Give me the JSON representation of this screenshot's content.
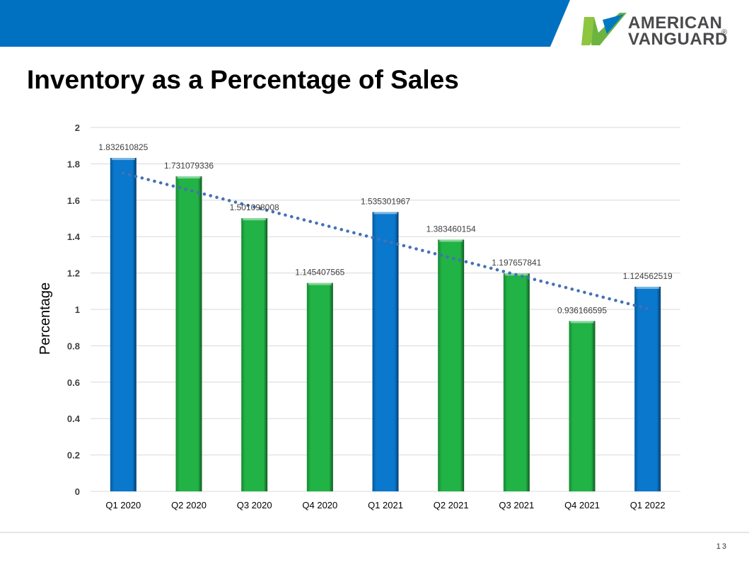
{
  "slide": {
    "title": "Inventory as a Percentage of Sales",
    "page_number": "13"
  },
  "logo": {
    "line1": "AMERICAN",
    "line2": "VANGUARD",
    "registered": "®"
  },
  "colors": {
    "header_blue": "#0070c0",
    "bar_blue": "#0a78cc",
    "bar_green": "#21b345",
    "trendline": "#4470b8",
    "logo_green": "#8dc63f",
    "logo_blue": "#0079c1"
  },
  "chart_data": {
    "type": "bar",
    "title": "",
    "xlabel": "",
    "ylabel": "Percentage",
    "ylim": [
      0,
      2
    ],
    "yticks": [
      "0",
      "0.2",
      "0.4",
      "0.6",
      "0.8",
      "1",
      "1.2",
      "1.4",
      "1.6",
      "1.8",
      "2"
    ],
    "grid": true,
    "legend": "none",
    "categories": [
      "Q1 2020",
      "Q2 2020",
      "Q3 2020",
      "Q4 2020",
      "Q1 2021",
      "Q2 2021",
      "Q3 2021",
      "Q4 2021",
      "Q1 2022"
    ],
    "values": [
      1.832610825,
      1.731079336,
      1.501098008,
      1.145407565,
      1.535301967,
      1.383460154,
      1.197657841,
      0.936166595,
      1.124562519
    ],
    "value_labels": [
      "1.832610825",
      "1.731079336",
      "1.501098008",
      "1.145407565",
      "1.535301967",
      "1.383460154",
      "1.197657841",
      "0.936166595",
      "1.124562519"
    ],
    "bar_colors": [
      "blue",
      "green",
      "green",
      "green",
      "blue",
      "green",
      "green",
      "green",
      "blue"
    ],
    "trendline": {
      "type": "linear",
      "style": "dotted"
    }
  }
}
